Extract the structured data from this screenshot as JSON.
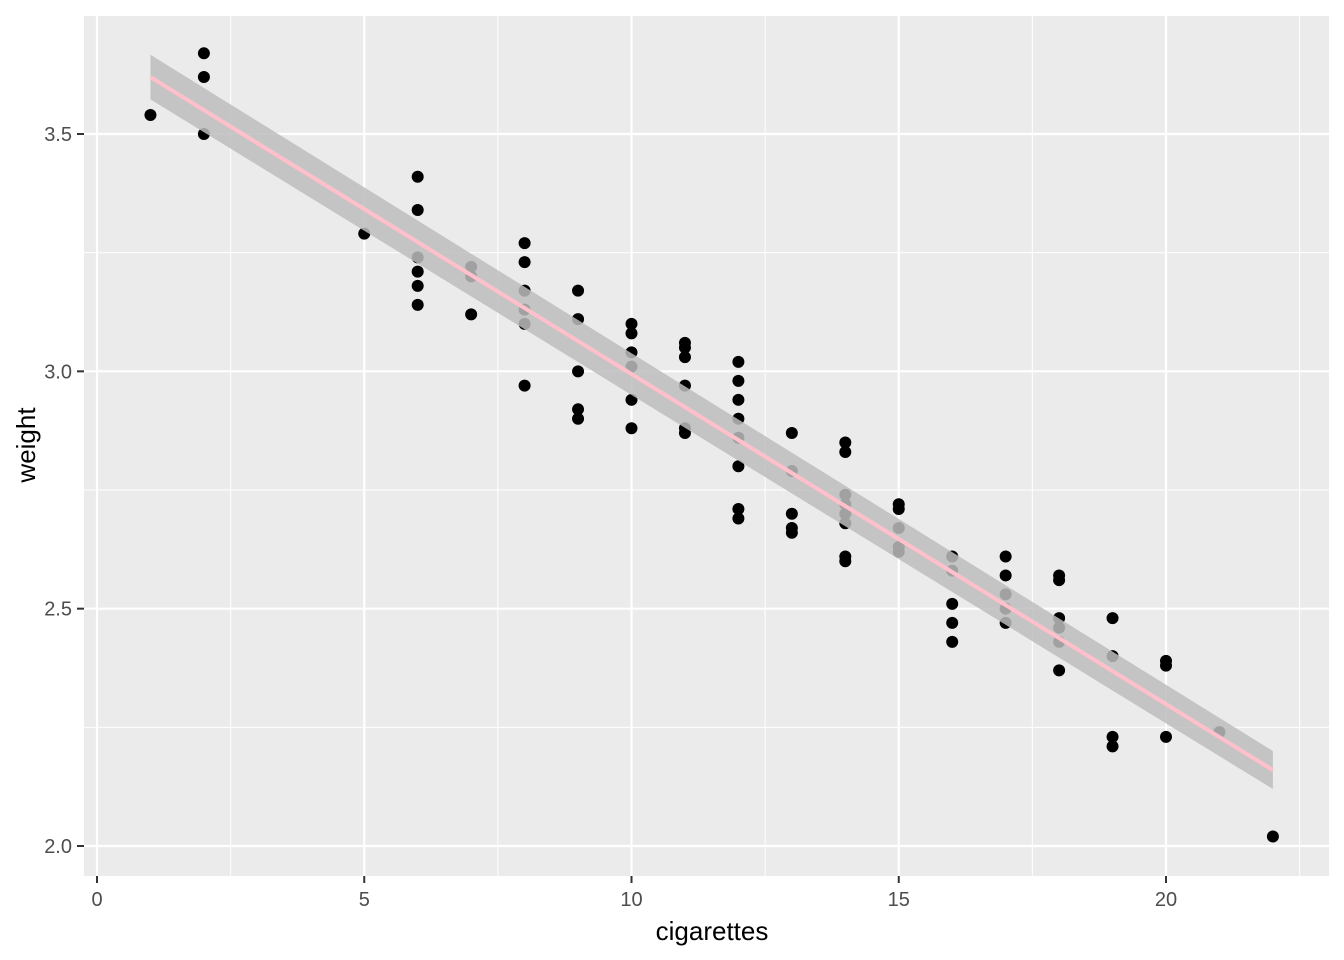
{
  "chart_data": {
    "type": "scatter",
    "title": "",
    "xlabel": "cigarettes",
    "ylabel": "weight",
    "xlim": [
      0,
      23.0
    ],
    "ylim": [
      1.95,
      3.75
    ],
    "x_ticks": [
      0,
      5,
      10,
      15,
      20
    ],
    "y_ticks": [
      2.0,
      2.5,
      3.0,
      3.5
    ],
    "x_tick_labels": [
      "0",
      "5",
      "10",
      "15",
      "20"
    ],
    "y_tick_labels": [
      "2.0",
      "2.5",
      "3.0",
      "3.5"
    ],
    "grid": true,
    "legend": "none",
    "points": [
      [
        1,
        3.54
      ],
      [
        2,
        3.67
      ],
      [
        2,
        3.62
      ],
      [
        2,
        3.5
      ],
      [
        5,
        3.29
      ],
      [
        6,
        3.41
      ],
      [
        6,
        3.34
      ],
      [
        6,
        3.24
      ],
      [
        6,
        3.21
      ],
      [
        6,
        3.18
      ],
      [
        6,
        3.14
      ],
      [
        7,
        3.22
      ],
      [
        7,
        3.2
      ],
      [
        7,
        3.12
      ],
      [
        8,
        3.27
      ],
      [
        8,
        3.23
      ],
      [
        8,
        3.17
      ],
      [
        8,
        3.13
      ],
      [
        8,
        3.1
      ],
      [
        8,
        2.97
      ],
      [
        9,
        3.17
      ],
      [
        9,
        3.11
      ],
      [
        9,
        3.0
      ],
      [
        9,
        2.92
      ],
      [
        9,
        2.9
      ],
      [
        10,
        3.1
      ],
      [
        10,
        3.08
      ],
      [
        10,
        3.04
      ],
      [
        10,
        3.01
      ],
      [
        10,
        2.94
      ],
      [
        10,
        2.88
      ],
      [
        11,
        3.06
      ],
      [
        11,
        3.05
      ],
      [
        11,
        3.03
      ],
      [
        11,
        2.97
      ],
      [
        11,
        2.88
      ],
      [
        11,
        2.87
      ],
      [
        12,
        3.02
      ],
      [
        12,
        2.98
      ],
      [
        12,
        2.94
      ],
      [
        12,
        2.9
      ],
      [
        12,
        2.86
      ],
      [
        12,
        2.8
      ],
      [
        12,
        2.71
      ],
      [
        12,
        2.69
      ],
      [
        13,
        2.87
      ],
      [
        13,
        2.79
      ],
      [
        13,
        2.7
      ],
      [
        13,
        2.67
      ],
      [
        13,
        2.66
      ],
      [
        14,
        2.85
      ],
      [
        14,
        2.83
      ],
      [
        14,
        2.74
      ],
      [
        14,
        2.72
      ],
      [
        14,
        2.7
      ],
      [
        14,
        2.68
      ],
      [
        14,
        2.61
      ],
      [
        14,
        2.6
      ],
      [
        15,
        2.72
      ],
      [
        15,
        2.71
      ],
      [
        15,
        2.67
      ],
      [
        15,
        2.63
      ],
      [
        15,
        2.62
      ],
      [
        16,
        2.61
      ],
      [
        16,
        2.58
      ],
      [
        16,
        2.51
      ],
      [
        16,
        2.47
      ],
      [
        16,
        2.43
      ],
      [
        17,
        2.61
      ],
      [
        17,
        2.57
      ],
      [
        17,
        2.53
      ],
      [
        17,
        2.5
      ],
      [
        17,
        2.47
      ],
      [
        18,
        2.57
      ],
      [
        18,
        2.56
      ],
      [
        18,
        2.48
      ],
      [
        18,
        2.46
      ],
      [
        18,
        2.43
      ],
      [
        18,
        2.37
      ],
      [
        19,
        2.48
      ],
      [
        19,
        2.4
      ],
      [
        19,
        2.23
      ],
      [
        19,
        2.21
      ],
      [
        20,
        2.39
      ],
      [
        20,
        2.38
      ],
      [
        20,
        2.23
      ],
      [
        21,
        2.24
      ],
      [
        22,
        2.02
      ]
    ],
    "fit": {
      "type": "linear",
      "line_color": "#ffc0cb",
      "band_color": "#bdbdbd",
      "x": [
        1,
        22
      ],
      "y": [
        3.62,
        2.16
      ],
      "upper": [
        3.667,
        2.2
      ],
      "lower": [
        3.573,
        2.12
      ]
    },
    "colors": {
      "panel": "#ebebeb",
      "grid": "#ffffff",
      "points": "#000000"
    }
  }
}
